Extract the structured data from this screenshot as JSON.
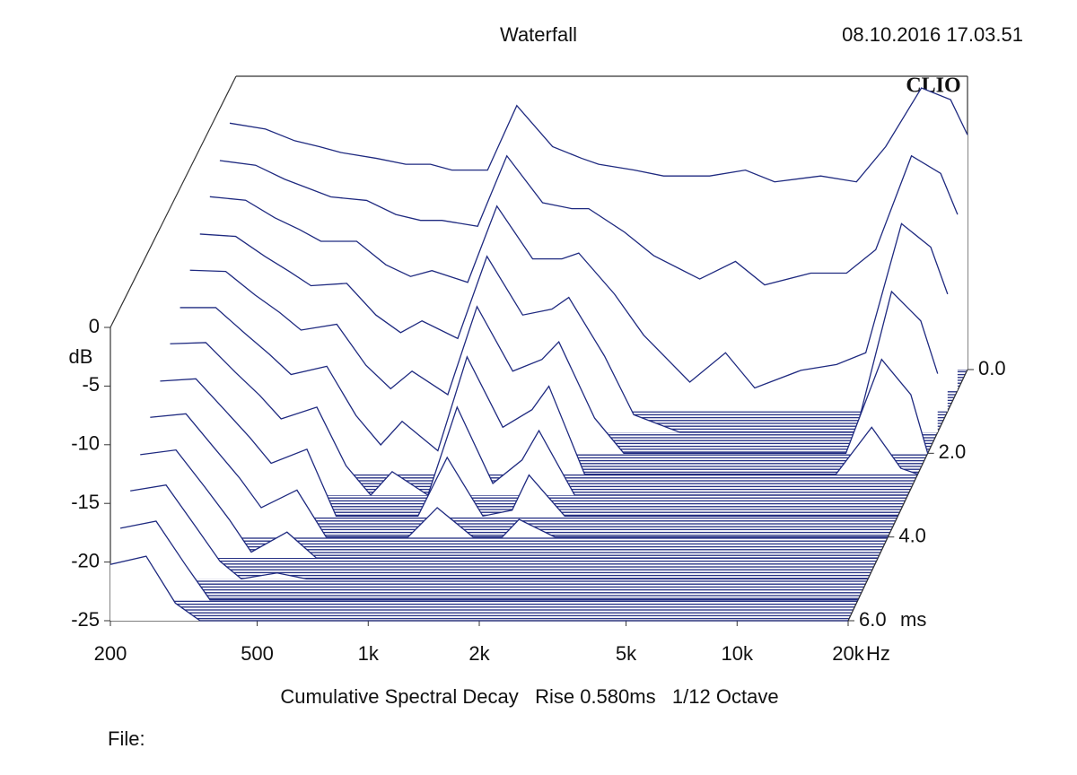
{
  "chart_data": {
    "type": "waterfall",
    "title": "Waterfall",
    "timestamp": "08.10.2016 17.03.51",
    "brand": "CLIO",
    "subtitle": "Cumulative Spectral Decay   Rise 0.580ms   1/12 Octave",
    "file_label": "File:",
    "x_unit": "Hz",
    "y_unit": "dB",
    "z_unit": "ms",
    "xscale": "log",
    "xlim": [
      200,
      20000
    ],
    "xticks": [
      200,
      500,
      {
        "value": 1000,
        "label": "1k"
      },
      {
        "value": 2000,
        "label": "2k"
      },
      {
        "value": 5000,
        "label": "5k"
      },
      {
        "value": 10000,
        "label": "10k"
      },
      {
        "value": 20000,
        "label": "20k"
      }
    ],
    "ylim": [
      -25,
      0
    ],
    "yticks": [
      0,
      -5,
      -10,
      -15,
      -20,
      -25
    ],
    "zlim": [
      0,
      6
    ],
    "zticks": [
      {
        "value": 0,
        "label": "0.0"
      },
      {
        "value": 2,
        "label": "2.0"
      },
      {
        "value": 4,
        "label": "4.0"
      },
      {
        "value": 6,
        "label": "6.0"
      }
    ],
    "color": "#1f2a80",
    "x": [
      200,
      250,
      300,
      350,
      400,
      500,
      600,
      700,
      800,
      1000,
      1200,
      1500,
      1800,
      2000,
      2500,
      3000,
      4000,
      5000,
      6000,
      8000,
      10000,
      12000,
      15000,
      18000,
      20000
    ],
    "slices": [
      {
        "t": 0,
        "values": [
          -4,
          -4.5,
          -5.5,
          -6,
          -6.5,
          -7,
          -7.5,
          -7.5,
          -8,
          -8,
          -2.5,
          -6,
          -7,
          -7.5,
          -8,
          -8.5,
          -8.5,
          -8,
          -9,
          -8.5,
          -9,
          -6,
          -1,
          -2,
          -5
        ]
      },
      {
        "t": 0.5,
        "values": [
          -5.4,
          -5.8,
          -7,
          -7.8,
          -8.5,
          -8.8,
          -10,
          -10.5,
          -10.5,
          -11,
          -5,
          -9,
          -9.5,
          -9.5,
          -11.5,
          -13.5,
          -15.5,
          -14,
          -16,
          -15,
          -15,
          -13,
          -5,
          -6.5,
          -10
        ]
      },
      {
        "t": 1,
        "values": [
          -6.7,
          -7,
          -8.5,
          -9.5,
          -10.5,
          -10.5,
          -12.5,
          -13.5,
          -13,
          -14,
          -7.5,
          -12,
          -12,
          -11.5,
          -15,
          -18.5,
          -22.5,
          -20,
          -23,
          -21.5,
          -21,
          -20,
          -9,
          -11,
          -15
        ]
      },
      {
        "t": 1.5,
        "values": [
          -8.1,
          -8.3,
          -10,
          -11.3,
          -12.5,
          -12.3,
          -15,
          -16.5,
          -15.5,
          -17,
          -10,
          -15,
          -14.5,
          -13.5,
          -18.5,
          -23.5,
          -25,
          -25,
          -25,
          -25,
          -25,
          -25,
          -13,
          -15.5,
          -20
        ]
      },
      {
        "t": 2,
        "values": [
          -9.4,
          -9.5,
          -11.5,
          -13,
          -14.5,
          -14,
          -17.5,
          -19.5,
          -18,
          -20,
          -12.5,
          -18,
          -17,
          -15.5,
          -22,
          -25,
          -25,
          -25,
          -25,
          -25,
          -25,
          -25,
          -17,
          -20,
          -25
        ]
      },
      {
        "t": 2.5,
        "values": [
          -10.8,
          -10.8,
          -13,
          -14.8,
          -16.5,
          -15.8,
          -20,
          -22.5,
          -20.5,
          -23,
          -15,
          -21,
          -19.5,
          -17.5,
          -25,
          -25,
          -25,
          -25,
          -25,
          -25,
          -25,
          -25,
          -21,
          -24.5,
          -25
        ]
      },
      {
        "t": 3,
        "values": [
          -12.1,
          -12,
          -14.5,
          -16.5,
          -18.5,
          -17.5,
          -22.5,
          -25,
          -23,
          -25,
          -17.5,
          -24,
          -22,
          -19.5,
          -25,
          -25,
          -25,
          -25,
          -25,
          -25,
          -25,
          -25,
          -25,
          -25,
          -25
        ]
      },
      {
        "t": 3.5,
        "values": [
          -13.5,
          -13.3,
          -16,
          -18.3,
          -20.5,
          -19.3,
          -25,
          -25,
          -25,
          -25,
          -20,
          -25,
          -24.5,
          -21.5,
          -25,
          -25,
          -25,
          -25,
          -25,
          -25,
          -25,
          -25,
          -25,
          -25,
          -25
        ]
      },
      {
        "t": 4,
        "values": [
          -14.8,
          -14.5,
          -17.5,
          -20,
          -22.5,
          -21,
          -25,
          -25,
          -25,
          -25,
          -22.5,
          -25,
          -25,
          -23.5,
          -25,
          -25,
          -25,
          -25,
          -25,
          -25,
          -25,
          -25,
          -25,
          -25,
          -25
        ]
      },
      {
        "t": 4.5,
        "values": [
          -16.2,
          -15.8,
          -19,
          -21.8,
          -24.5,
          -22.8,
          -25,
          -25,
          -25,
          -25,
          -25,
          -25,
          -25,
          -25,
          -25,
          -25,
          -25,
          -25,
          -25,
          -25,
          -25,
          -25,
          -25,
          -25,
          -25
        ]
      },
      {
        "t": 5,
        "values": [
          -17.5,
          -17,
          -20.5,
          -23.5,
          -25,
          -24.5,
          -25,
          -25,
          -25,
          -25,
          -25,
          -25,
          -25,
          -25,
          -25,
          -25,
          -25,
          -25,
          -25,
          -25,
          -25,
          -25,
          -25,
          -25,
          -25
        ]
      },
      {
        "t": 5.5,
        "values": [
          -18.9,
          -18.3,
          -22,
          -25,
          -25,
          -25,
          -25,
          -25,
          -25,
          -25,
          -25,
          -25,
          -25,
          -25,
          -25,
          -25,
          -25,
          -25,
          -25,
          -25,
          -25,
          -25,
          -25,
          -25,
          -25
        ]
      },
      {
        "t": 6,
        "values": [
          -20.2,
          -19.5,
          -23.5,
          -25,
          -25,
          -25,
          -25,
          -25,
          -25,
          -25,
          -25,
          -25,
          -25,
          -25,
          -25,
          -25,
          -25,
          -25,
          -25,
          -25,
          -25,
          -25,
          -25,
          -25,
          -25
        ]
      }
    ]
  }
}
